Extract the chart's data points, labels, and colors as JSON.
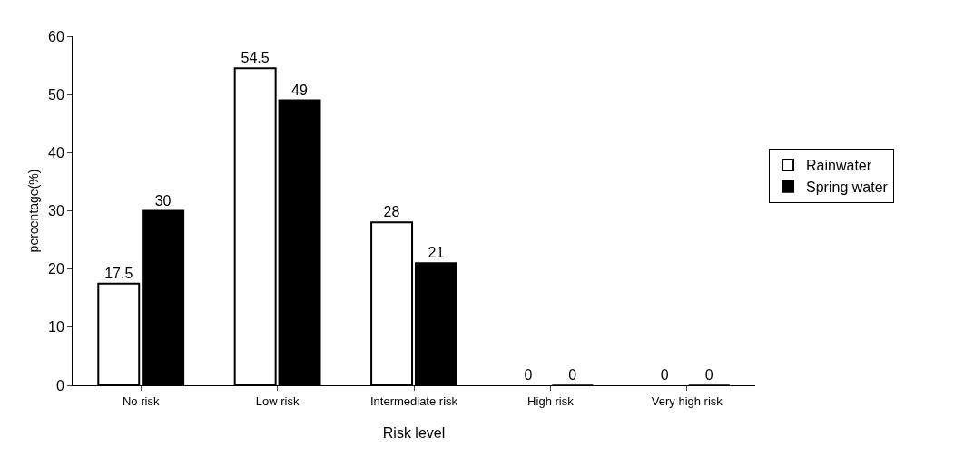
{
  "chart_data": {
    "type": "bar",
    "xlabel": "Risk level",
    "ylabel": "percentage(%)",
    "categories": [
      "No risk",
      "Low risk",
      "Intermediate risk",
      "High risk",
      "Very high risk"
    ],
    "series": [
      {
        "name": "Rainwater",
        "color": "#ffffff",
        "values": [
          17.5,
          54.5,
          28,
          0,
          0
        ]
      },
      {
        "name": "Spring water",
        "color": "#000000",
        "values": [
          30,
          49,
          21,
          0,
          0
        ]
      }
    ],
    "ylim": [
      0,
      60
    ],
    "yticks": [
      0,
      10,
      20,
      30,
      40,
      50,
      60
    ],
    "grid": false,
    "legend": "right",
    "data_labels": true
  }
}
